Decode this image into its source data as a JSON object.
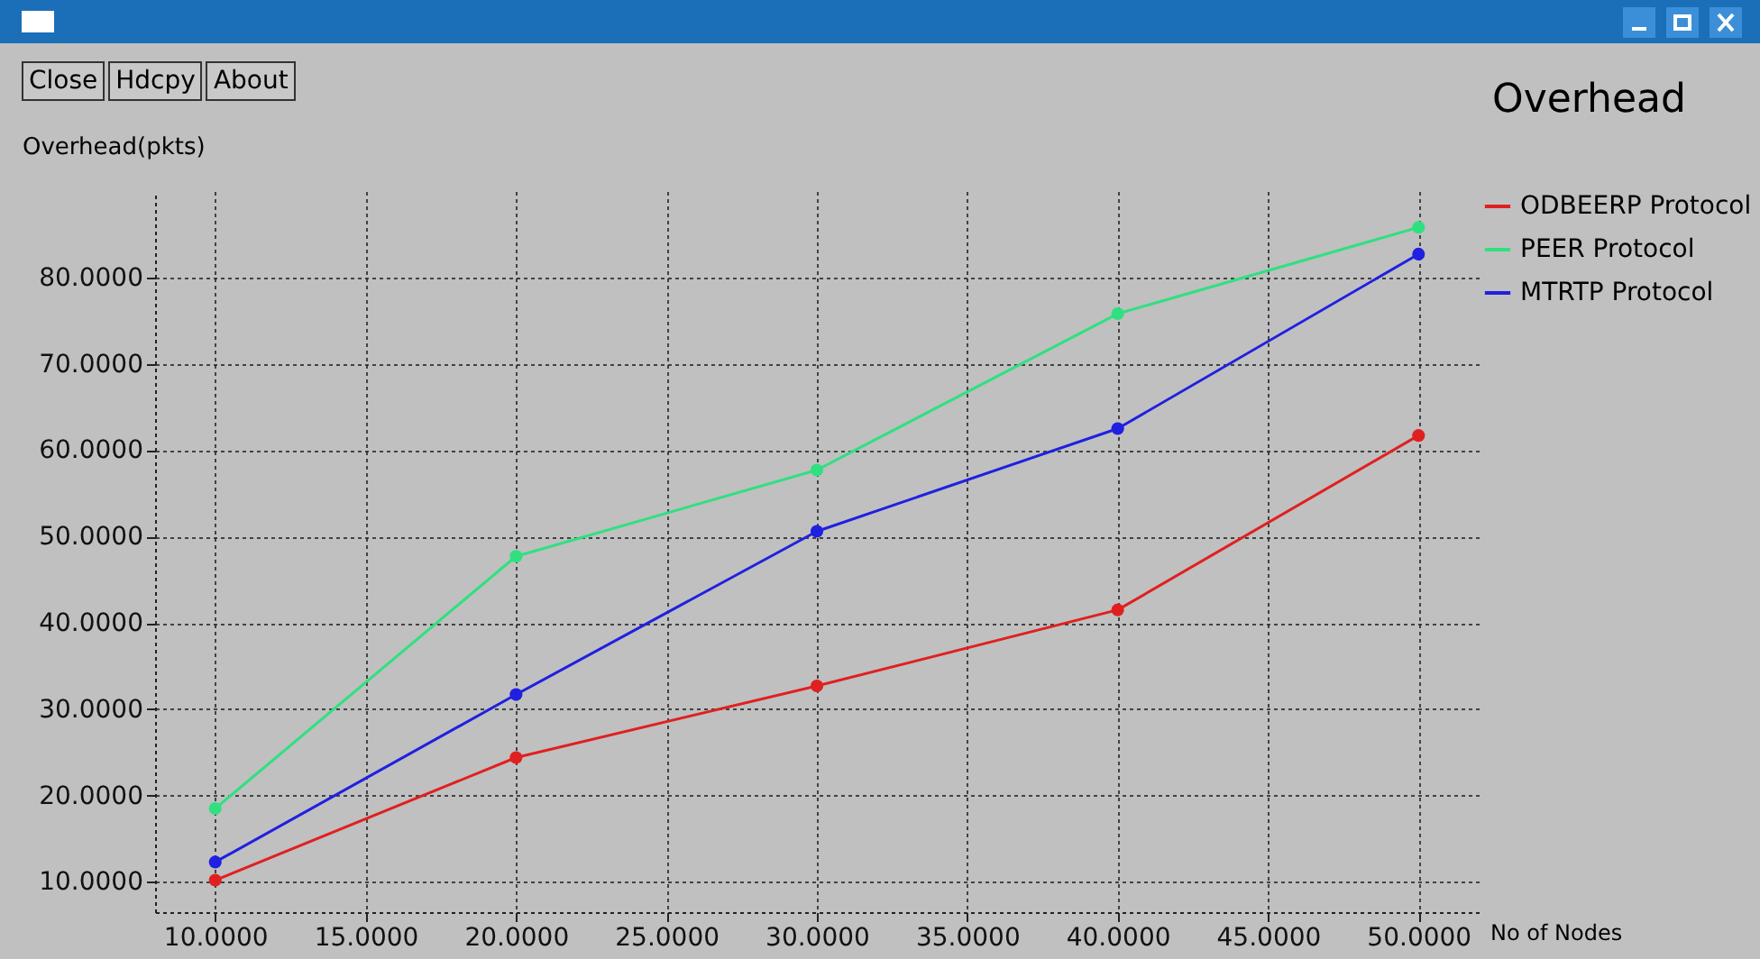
{
  "chart_data": {
    "type": "line",
    "title": "Overhead",
    "ylabel": "Overhead(pkts)",
    "xlabel": "No of Nodes",
    "annotations": [
      "Close",
      "Hdcpy",
      "About"
    ],
    "x": [
      10,
      20,
      30,
      40,
      50
    ],
    "series": [
      {
        "name": "ODBEERP Protocol",
        "color": "#e02020",
        "values": [
          10.2,
          24.4,
          32.7,
          41.5,
          61.7
        ]
      },
      {
        "name": "PEER Protocol",
        "color": "#30e080",
        "values": [
          18.5,
          47.7,
          57.7,
          75.8,
          85.8
        ]
      },
      {
        "name": "MTRTP Protocol",
        "color": "#2020e0",
        "values": [
          12.3,
          31.7,
          50.6,
          62.5,
          82.7
        ]
      }
    ],
    "xlim": [
      8,
      52
    ],
    "ylim": [
      6.5,
      90
    ],
    "xticks": [
      {
        "value": 10,
        "label": "10.0000"
      },
      {
        "value": 15,
        "label": "15.0000"
      },
      {
        "value": 20,
        "label": "20.0000"
      },
      {
        "value": 25,
        "label": "25.0000"
      },
      {
        "value": 30,
        "label": "30.0000"
      },
      {
        "value": 35,
        "label": "35.0000"
      },
      {
        "value": 40,
        "label": "40.0000"
      },
      {
        "value": 45,
        "label": "45.0000"
      },
      {
        "value": 50,
        "label": "50.0000"
      }
    ],
    "yticks": [
      {
        "value": 10,
        "label": "10.0000"
      },
      {
        "value": 20,
        "label": "20.0000"
      },
      {
        "value": 30,
        "label": "30.0000"
      },
      {
        "value": 40,
        "label": "40.0000"
      },
      {
        "value": 50,
        "label": "50.0000"
      },
      {
        "value": 60,
        "label": "60.0000"
      },
      {
        "value": 70,
        "label": "70.0000"
      },
      {
        "value": 80,
        "label": "80.0000"
      }
    ],
    "grid": true,
    "legend": "top right",
    "marker": "circle",
    "line_style": "solid"
  }
}
